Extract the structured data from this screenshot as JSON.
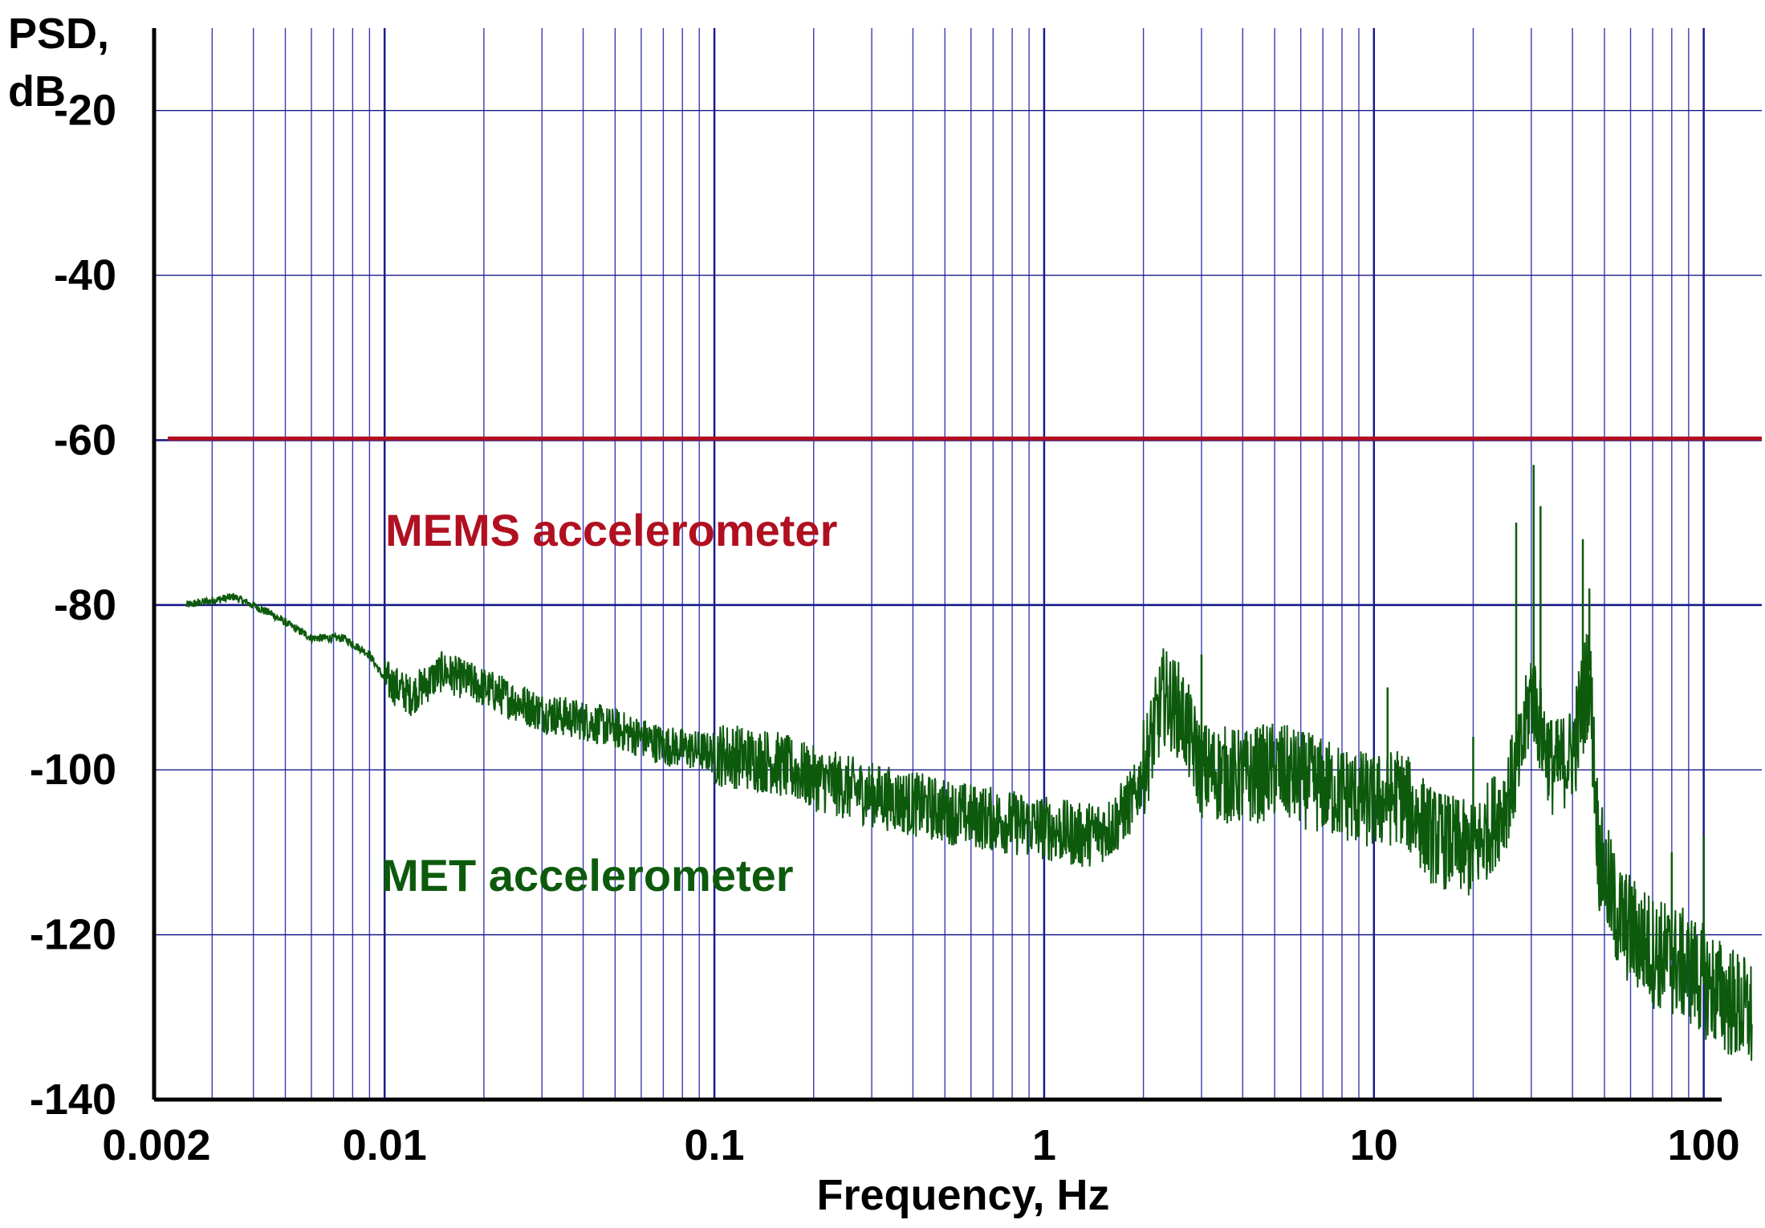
{
  "chart_data": {
    "type": "line",
    "title": "",
    "xlabel": "Frequency, Hz",
    "ylabel": [
      "PSD,",
      "dB"
    ],
    "x_scale": "log",
    "xlim": [
      0.002,
      150
    ],
    "ylim": [
      -140,
      -10
    ],
    "grid": true,
    "x_ticks": [
      {
        "value": 0.002,
        "label": "0.002"
      },
      {
        "value": 0.01,
        "label": "0.01"
      },
      {
        "value": 0.1,
        "label": "0.1"
      },
      {
        "value": 1,
        "label": "1"
      },
      {
        "value": 10,
        "label": "10"
      },
      {
        "value": 100,
        "label": "100"
      }
    ],
    "y_ticks": [
      {
        "value": -20,
        "label": "-20"
      },
      {
        "value": -40,
        "label": "-40"
      },
      {
        "value": -60,
        "label": "-60"
      },
      {
        "value": -80,
        "label": "-80"
      },
      {
        "value": -100,
        "label": "-100"
      },
      {
        "value": -120,
        "label": "-120"
      },
      {
        "value": -140,
        "label": "-140"
      }
    ],
    "series": [
      {
        "name": "MEMS accelerometer",
        "color": "#b01020",
        "x": [
          0.0022,
          150
        ],
        "y": [
          -59.8,
          -59.8
        ]
      },
      {
        "name": "MET accelerometer",
        "color": "#0d5a0d",
        "x": [
          0.0025,
          0.0035,
          0.0045,
          0.006,
          0.0075,
          0.009,
          0.01,
          0.012,
          0.015,
          0.02,
          0.03,
          0.04,
          0.05,
          0.07,
          0.1,
          0.15,
          0.2,
          0.3,
          0.5,
          0.7,
          1.0,
          1.3,
          1.6,
          1.9,
          2.1,
          2.3,
          2.6,
          3.0,
          4.0,
          5.0,
          7.0,
          10,
          12,
          15,
          20,
          25,
          28,
          30,
          32,
          35,
          40,
          45,
          48,
          55,
          70,
          90,
          110,
          140
        ],
        "y": [
          -80,
          -79,
          -81,
          -84,
          -84,
          -86,
          -89,
          -91,
          -88,
          -90,
          -93,
          -94,
          -95,
          -97,
          -98,
          -99,
          -101,
          -103,
          -105,
          -106,
          -107,
          -108,
          -107,
          -103,
          -97,
          -91,
          -93,
          -100,
          -101,
          -100,
          -102,
          -104,
          -103,
          -108,
          -110,
          -104,
          -98,
          -90,
          -95,
          -100,
          -98,
          -88,
          -110,
          -118,
          -122,
          -124,
          -127,
          -130
        ],
        "spikes": [
          {
            "x": 3.0,
            "y": -86
          },
          {
            "x": 11.0,
            "y": -90
          },
          {
            "x": 20.0,
            "y": -96
          },
          {
            "x": 27.0,
            "y": -70
          },
          {
            "x": 30.5,
            "y": -63
          },
          {
            "x": 32.0,
            "y": -68
          },
          {
            "x": 43.0,
            "y": -72
          },
          {
            "x": 45.0,
            "y": -78
          },
          {
            "x": 80.0,
            "y": -110
          },
          {
            "x": 100.0,
            "y": -108
          }
        ]
      }
    ],
    "annotations": [
      {
        "text": "MEMS accelerometer",
        "series": 0
      },
      {
        "text": "MET accelerometer",
        "series": 1
      }
    ],
    "colors": {
      "grid_major": "#1a1a8c",
      "grid_minor": "#3a3ab8",
      "axis": "#000000"
    }
  }
}
